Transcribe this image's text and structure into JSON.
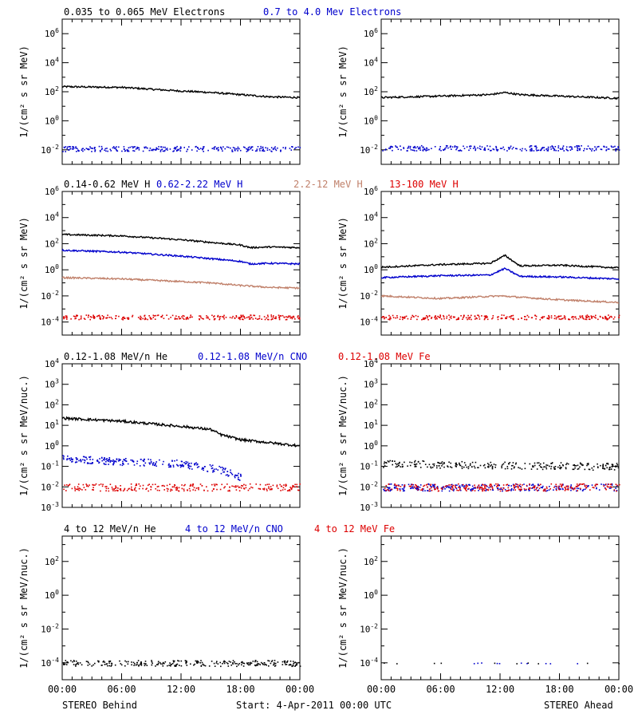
{
  "figure": {
    "bottom_left": "STEREO Behind",
    "bottom_center": "Start:  4-Apr-2011 00:00 UTC",
    "bottom_right": "STEREO Ahead"
  },
  "colors": {
    "black": "#000000",
    "blue": "#0000cc",
    "tan": "#c0806a",
    "red": "#dd0000"
  },
  "chart_data": [
    {
      "id": "electrons",
      "type": "scatter",
      "ylabel": "1/(cm² s sr MeV)",
      "ylog": true,
      "ylim": [
        -3,
        7
      ],
      "yticks": [
        -2,
        0,
        2,
        4,
        6
      ],
      "xlim": [
        0,
        24
      ],
      "xticks": [
        "00:00",
        "06:00",
        "12:00",
        "18:00",
        "00:00"
      ],
      "legend": [
        {
          "text": "0.035 to 0.065 MeV Electrons",
          "color": "#000000"
        },
        {
          "text": "0.7 to 4.0 Mev Electrons",
          "color": "#0000cc"
        }
      ],
      "behind": [
        {
          "x": [
            0,
            6,
            12,
            15,
            18,
            21,
            24
          ],
          "log_y": [
            2.35,
            2.3,
            2.05,
            1.95,
            1.8,
            1.65,
            1.6
          ],
          "color": "#000000",
          "style": "line"
        },
        {
          "x": [
            0,
            24
          ],
          "log_y": [
            -1.9,
            -1.9
          ],
          "color": "#0000cc",
          "style": "dots"
        }
      ],
      "ahead": [
        {
          "x": [
            0,
            6,
            11,
            12.5,
            14,
            18,
            24
          ],
          "log_y": [
            1.6,
            1.7,
            1.8,
            1.95,
            1.8,
            1.7,
            1.55
          ],
          "color": "#000000",
          "style": "line"
        },
        {
          "x": [
            0,
            24
          ],
          "log_y": [
            -1.85,
            -1.85
          ],
          "color": "#0000cc",
          "style": "dots"
        }
      ]
    },
    {
      "id": "protons",
      "type": "scatter",
      "ylabel": "1/(cm² s sr MeV)",
      "ylog": true,
      "ylim": [
        -5,
        6
      ],
      "yticks": [
        -4,
        -2,
        0,
        2,
        4,
        6
      ],
      "xlim": [
        0,
        24
      ],
      "xticks": [
        "00:00",
        "06:00",
        "12:00",
        "18:00",
        "00:00"
      ],
      "legend": [
        {
          "text": "0.14-0.62 MeV H",
          "color": "#000000"
        },
        {
          "text": "0.62-2.22 MeV H",
          "color": "#0000cc"
        },
        {
          "text": "2.2-12 MeV H",
          "color": "#c0806a"
        },
        {
          "text": "13-100 MeV H",
          "color": "#dd0000"
        }
      ],
      "behind": [
        {
          "x": [
            0,
            6,
            12,
            15,
            18,
            19,
            21,
            24
          ],
          "log_y": [
            2.7,
            2.6,
            2.3,
            2.1,
            1.9,
            1.7,
            1.75,
            1.7
          ],
          "color": "#000000",
          "style": "line"
        },
        {
          "x": [
            0,
            6,
            12,
            15,
            18,
            19,
            21,
            24
          ],
          "log_y": [
            1.5,
            1.35,
            1.05,
            0.85,
            0.65,
            0.45,
            0.5,
            0.45
          ],
          "color": "#0000cc",
          "style": "line"
        },
        {
          "x": [
            0,
            6,
            12,
            15,
            18,
            21,
            24
          ],
          "log_y": [
            -0.6,
            -0.7,
            -0.9,
            -1.0,
            -1.2,
            -1.35,
            -1.4
          ],
          "color": "#c0806a",
          "style": "line"
        },
        {
          "x": [
            0,
            24
          ],
          "log_y": [
            -3.6,
            -3.6
          ],
          "color": "#dd0000",
          "style": "dots"
        }
      ],
      "ahead": [
        {
          "x": [
            0,
            6,
            11,
            12.5,
            14,
            18,
            24
          ],
          "log_y": [
            0.2,
            0.4,
            0.5,
            1.1,
            0.3,
            0.35,
            0.15
          ],
          "color": "#000000",
          "style": "line"
        },
        {
          "x": [
            0,
            6,
            11,
            12.5,
            14,
            18,
            24
          ],
          "log_y": [
            -0.6,
            -0.45,
            -0.4,
            0.1,
            -0.5,
            -0.55,
            -0.7
          ],
          "color": "#0000cc",
          "style": "line"
        },
        {
          "x": [
            0,
            6,
            12,
            18,
            24
          ],
          "log_y": [
            -2.0,
            -2.2,
            -2.0,
            -2.3,
            -2.5
          ],
          "color": "#c0806a",
          "style": "line"
        },
        {
          "x": [
            0,
            24
          ],
          "log_y": [
            -3.6,
            -3.6
          ],
          "color": "#dd0000",
          "style": "dots"
        }
      ]
    },
    {
      "id": "heavy-low",
      "type": "scatter",
      "ylabel": "1/(cm² s sr MeV/nuc.)",
      "ylog": true,
      "ylim": [
        -3,
        4
      ],
      "yticks": [
        -3,
        -2,
        -1,
        0,
        1,
        2,
        3,
        4
      ],
      "xlim": [
        0,
        24
      ],
      "xticks": [
        "00:00",
        "06:00",
        "12:00",
        "18:00",
        "00:00"
      ],
      "legend": [
        {
          "text": "0.12-1.08 MeV/n He",
          "color": "#000000"
        },
        {
          "text": "0.12-1.08 MeV/n CNO",
          "color": "#0000cc"
        },
        {
          "text": "0.12-1.08 MeV Fe",
          "color": "#dd0000"
        }
      ],
      "behind": [
        {
          "x": [
            0,
            6,
            12,
            15,
            16,
            18,
            20,
            24
          ],
          "log_y": [
            1.35,
            1.2,
            0.95,
            0.8,
            0.55,
            0.3,
            0.2,
            0.0
          ],
          "color": "#000000",
          "style": "line"
        },
        {
          "x": [
            0,
            6,
            12,
            16,
            18
          ],
          "log_y": [
            -0.6,
            -0.75,
            -0.85,
            -1.15,
            -1.5
          ],
          "color": "#0000cc",
          "style": "dots"
        },
        {
          "x": [
            0,
            24
          ],
          "log_y": [
            -2.0,
            -2.0
          ],
          "color": "#dd0000",
          "style": "dots"
        }
      ],
      "ahead": [
        {
          "x": [
            0,
            24
          ],
          "log_y": [
            -0.85,
            -1.0
          ],
          "color": "#000000",
          "style": "dots"
        },
        {
          "x": [
            0,
            24
          ],
          "log_y": [
            -2.0,
            -2.0
          ],
          "color": "#0000cc",
          "style": "dots"
        },
        {
          "x": [
            0,
            24
          ],
          "log_y": [
            -2.0,
            -2.0
          ],
          "color": "#dd0000",
          "style": "dots"
        }
      ]
    },
    {
      "id": "heavy-high",
      "type": "scatter",
      "ylabel": "1/(cm² s sr MeV/nuc.)",
      "ylog": true,
      "ylim": [
        -5,
        3.5
      ],
      "yticks": [
        -4,
        -2,
        0,
        2
      ],
      "xlim": [
        0,
        24
      ],
      "xticks": [
        "00:00",
        "06:00",
        "12:00",
        "18:00",
        "00:00"
      ],
      "legend": [
        {
          "text": "4 to 12 MeV/n He",
          "color": "#000000"
        },
        {
          "text": "4 to 12 MeV/n CNO",
          "color": "#0000cc"
        },
        {
          "text": "4 to 12 MeV Fe",
          "color": "#dd0000"
        }
      ],
      "behind": [
        {
          "x": [
            0,
            24
          ],
          "log_y": [
            -4.0,
            -4.0
          ],
          "color": "#000000",
          "style": "dots"
        }
      ],
      "ahead": [
        {
          "x": [
            0,
            24
          ],
          "log_y": [
            -4.0,
            -4.0
          ],
          "color": "#000000",
          "style": "sparse"
        },
        {
          "x": [
            8,
            20
          ],
          "log_y": [
            -4.0,
            -4.0
          ],
          "color": "#0000cc",
          "style": "sparse"
        }
      ]
    }
  ]
}
